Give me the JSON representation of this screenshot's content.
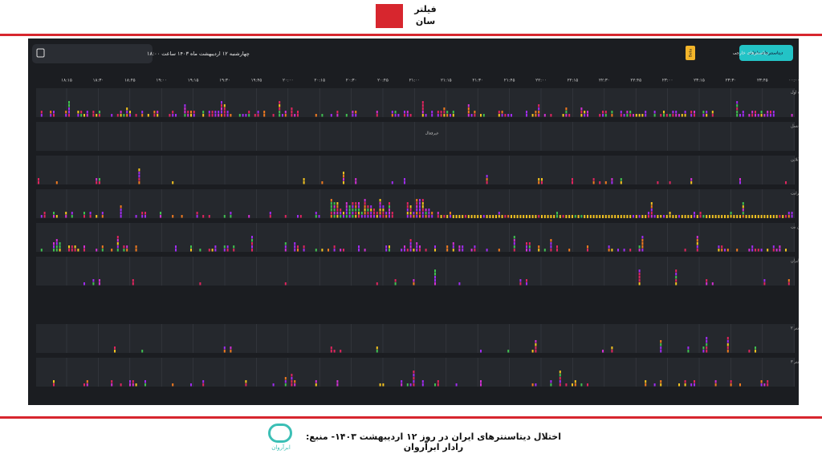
{
  "logo": {
    "line1": "فیلتر",
    "line2": "سان"
  },
  "header": {
    "date": "چهارشنبه ۱۲ اردیبهشت ماه ۱۴۰۳ ساعت ۱۸:۰۰",
    "tabs": [
      "دیتاسنترهای داخلی",
      "دیتاسنترهای خارجی"
    ],
    "badge": "Beta"
  },
  "timeline": [
    "۱۸:۱۵",
    "۱۸:۳۰",
    "۱۸:۴۵",
    "۱۹:۰۰",
    "۱۹:۱۵",
    "۱۹:۳۰",
    "۱۹:۴۵",
    "۲۰:۰۰",
    "۲۰:۱۵",
    "۲۰:۳۰",
    "۲۰:۴۵",
    "۲۱:۰۰",
    "۲۱:۱۵",
    "۲۱:۳۰",
    "۲۱:۴۵",
    "۲۲:۰۰",
    "۲۲:۱۵",
    "۲۲:۳۰",
    "۲۲:۴۵",
    "۲۳:۰۰",
    "۲۳:۱۵",
    "۲۳:۳۰",
    "۲۳:۴۵",
    "۰۰:۰۰"
  ],
  "rows": [
    {
      "title": "تهران - دیتاسنتر همراه اول"
    },
    {
      "title": "تهران - دیتاسنتر ایرانسل",
      "status": "غیرفعال"
    },
    {
      "title": "تهران - دیتاسنتر پارس آنلاین"
    },
    {
      "title": "تهران - دیتاسنتر افرانت"
    },
    {
      "title": "تهران - دیتاسنتر مبین نت"
    },
    {
      "title": "تهران - دیتاسنتر هاستایران"
    },
    {
      "title": "تهران - دیتاسنتر ۲"
    },
    {
      "title": "تهران - دیتاسنتر ۳"
    }
  ],
  "caption": "اختلال دیتاسنترهای ایران در روز ۱۲ اردیبهشت ۱۴۰۳- منبع: رادار ابرآروان",
  "caption_logo": "ابرآروان"
}
